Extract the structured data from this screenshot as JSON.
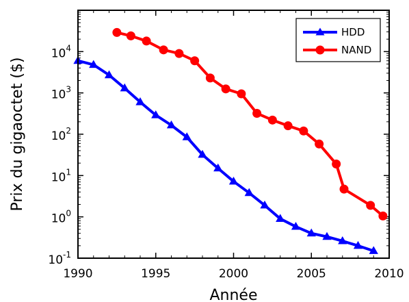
{
  "chart_data": {
    "type": "line",
    "title": "",
    "xlabel": "Année",
    "ylabel": "Prix du gigaoctet ($)",
    "xlim": [
      1990,
      2010
    ],
    "ylim": [
      0.1,
      100000
    ],
    "yscale": "log",
    "xticks": [
      "1990",
      "1995",
      "2000",
      "2005",
      "2010"
    ],
    "yticks": [
      {
        "base": "10",
        "exp": "-1",
        "value": 0.1
      },
      {
        "base": "10",
        "exp": "0",
        "value": 1
      },
      {
        "base": "10",
        "exp": "1",
        "value": 10
      },
      {
        "base": "10",
        "exp": "2",
        "value": 100
      },
      {
        "base": "10",
        "exp": "3",
        "value": 1000
      },
      {
        "base": "10",
        "exp": "4",
        "value": 10000
      }
    ],
    "grid": false,
    "legend_position": "top-right",
    "series": [
      {
        "name": "HDD",
        "color": "#0000ff",
        "marker": "triangle",
        "points": [
          [
            1990,
            6000
          ],
          [
            1991,
            4800
          ],
          [
            1992,
            2700
          ],
          [
            1993,
            1300
          ],
          [
            1994,
            600
          ],
          [
            1995,
            290
          ],
          [
            1996,
            165
          ],
          [
            1997,
            85
          ],
          [
            1998,
            32
          ],
          [
            1999,
            15
          ],
          [
            2000,
            7.2
          ],
          [
            2001,
            3.8
          ],
          [
            2002,
            1.9
          ],
          [
            2003,
            0.9
          ],
          [
            2004,
            0.58
          ],
          [
            2005,
            0.4
          ],
          [
            2006,
            0.33
          ],
          [
            2007,
            0.26
          ],
          [
            2008,
            0.2
          ],
          [
            2009,
            0.15
          ]
        ]
      },
      {
        "name": "NAND",
        "color": "#ff0000",
        "marker": "circle",
        "points": [
          [
            1992.5,
            29000
          ],
          [
            1993.4,
            24000
          ],
          [
            1994.4,
            18000
          ],
          [
            1995.5,
            11000
          ],
          [
            1996.5,
            9000
          ],
          [
            1997.5,
            6000
          ],
          [
            1998.5,
            2300
          ],
          [
            1999.5,
            1250
          ],
          [
            2000.5,
            950
          ],
          [
            2001.5,
            320
          ],
          [
            2002.5,
            220
          ],
          [
            2003.5,
            160
          ],
          [
            2004.5,
            120
          ],
          [
            2005.5,
            58
          ],
          [
            2006.6,
            19
          ],
          [
            2007.1,
            4.7
          ],
          [
            2008.8,
            1.9
          ],
          [
            2009.6,
            1.05
          ]
        ]
      }
    ]
  }
}
